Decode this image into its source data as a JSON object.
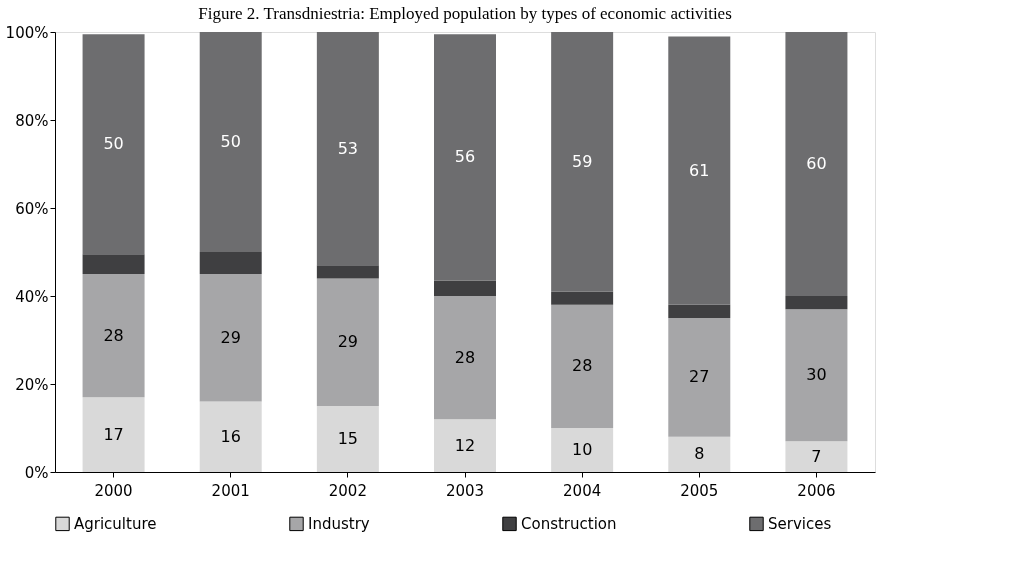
{
  "chart_data": {
    "type": "bar",
    "stacked": true,
    "title": "Figure 2. Transdniestria: Employed population by types of economic activities",
    "categories": [
      "2000",
      "2001",
      "2002",
      "2003",
      "2004",
      "2005",
      "2006"
    ],
    "series": [
      {
        "name": "Agriculture",
        "color": "#d9d9d9",
        "values": [
          17,
          16,
          15,
          12,
          10,
          8,
          7
        ],
        "value_labels": [
          "17",
          "16",
          "15",
          "12",
          "10",
          "8",
          "7"
        ]
      },
      {
        "name": "Industry",
        "color": "#a6a6a8",
        "values": [
          28,
          29,
          29,
          28,
          28,
          27,
          30
        ],
        "value_labels": [
          "28",
          "29",
          "29",
          "28",
          "28",
          "27",
          "30"
        ]
      },
      {
        "name": "Construction",
        "color": "#3f3f41",
        "values": [
          4.5,
          5,
          3,
          3.5,
          3,
          3,
          3
        ]
      },
      {
        "name": "Services",
        "color": "#6d6d6f",
        "values": [
          50,
          50,
          53,
          56,
          59,
          61,
          60
        ],
        "value_labels": [
          "50",
          "50",
          "53",
          "56",
          "59",
          "61",
          "60"
        ]
      }
    ],
    "ylim": [
      0,
      100
    ],
    "yticks": [
      {
        "value": 0,
        "label": "0%"
      },
      {
        "value": 20,
        "label": "20%"
      },
      {
        "value": 40,
        "label": "40%"
      },
      {
        "value": 60,
        "label": "60%"
      },
      {
        "value": 80,
        "label": "80%"
      },
      {
        "value": 100,
        "label": "100%"
      }
    ],
    "grid": false,
    "legend": "bottom"
  }
}
